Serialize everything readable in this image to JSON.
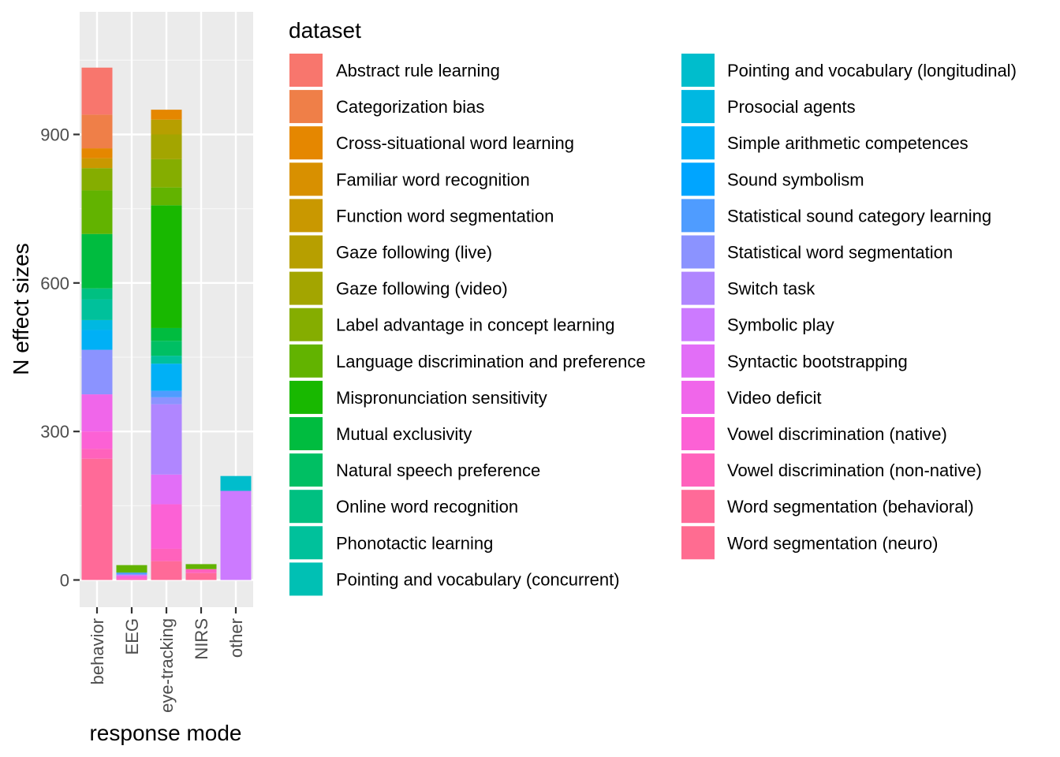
{
  "chart_data": {
    "type": "bar",
    "stacked": true,
    "xlabel": "response mode",
    "ylabel": "N effect sizes",
    "ylim": [
      -45,
      1100
    ],
    "y_ticks": [
      0,
      300,
      600,
      900
    ],
    "categories": [
      "behavior",
      "EEG",
      "eye-tracking",
      "NIRS",
      "other"
    ],
    "legend": {
      "title": "dataset",
      "placement": "right",
      "columns": 2
    },
    "grid": true,
    "series": [
      {
        "name": "Abstract rule learning",
        "color": "#F8766D",
        "values": [
          95,
          0,
          0,
          0,
          0
        ]
      },
      {
        "name": "Categorization bias",
        "color": "#EF7F48",
        "values": [
          68,
          0,
          0,
          0,
          0
        ]
      },
      {
        "name": "Cross-situational word learning",
        "color": "#E58700",
        "values": [
          20,
          0,
          20,
          0,
          0
        ]
      },
      {
        "name": "Familiar word recognition",
        "color": "#D89000",
        "values": [
          0,
          0,
          0,
          0,
          0
        ]
      },
      {
        "name": "Function word segmentation",
        "color": "#C99800",
        "values": [
          20,
          0,
          0,
          0,
          0
        ]
      },
      {
        "name": "Gaze following (live)",
        "color": "#B79F00",
        "values": [
          0,
          0,
          30,
          0,
          0
        ]
      },
      {
        "name": "Gaze following (video)",
        "color": "#A3A500",
        "values": [
          0,
          0,
          50,
          0,
          0
        ]
      },
      {
        "name": "Label advantage in concept learning",
        "color": "#85AD00",
        "values": [
          45,
          0,
          57,
          0,
          0
        ]
      },
      {
        "name": "Language discrimination and preference",
        "color": "#62B300",
        "values": [
          88,
          15,
          36,
          10,
          0
        ]
      },
      {
        "name": "Mispronunciation sensitivity",
        "color": "#18B800",
        "values": [
          0,
          0,
          248,
          0,
          0
        ]
      },
      {
        "name": "Mutual exclusivity",
        "color": "#00BC3F",
        "values": [
          110,
          0,
          26,
          0,
          0
        ]
      },
      {
        "name": "Natural speech preference",
        "color": "#00BF63",
        "values": [
          0,
          0,
          30,
          0,
          0
        ]
      },
      {
        "name": "Online word recognition",
        "color": "#00C081",
        "values": [
          22,
          0,
          0,
          0,
          0
        ]
      },
      {
        "name": "Phonotactic learning",
        "color": "#00C19B",
        "values": [
          42,
          0,
          16,
          0,
          0
        ]
      },
      {
        "name": "Pointing and vocabulary (concurrent)",
        "color": "#00C0B4",
        "values": [
          0,
          0,
          0,
          0,
          0
        ]
      },
      {
        "name": "Pointing and vocabulary (longitudinal)",
        "color": "#00BDCC",
        "values": [
          0,
          0,
          0,
          0,
          30
        ]
      },
      {
        "name": "Prosocial agents",
        "color": "#00B8E1",
        "values": [
          20,
          0,
          0,
          0,
          0
        ]
      },
      {
        "name": "Simple arithmetic competences",
        "color": "#00B0F6",
        "values": [
          40,
          0,
          55,
          0,
          0
        ]
      },
      {
        "name": "Sound symbolism",
        "color": "#00A5FF",
        "values": [
          0,
          0,
          0,
          0,
          0
        ]
      },
      {
        "name": "Statistical sound category learning",
        "color": "#4F9CFF",
        "values": [
          0,
          4,
          13,
          0,
          0
        ]
      },
      {
        "name": "Statistical word segmentation",
        "color": "#8B93FF",
        "values": [
          90,
          0,
          14,
          0,
          0
        ]
      },
      {
        "name": "Switch task",
        "color": "#B086FF",
        "values": [
          0,
          0,
          142,
          0,
          0
        ]
      },
      {
        "name": "Symbolic play",
        "color": "#CC7AFF",
        "values": [
          0,
          3,
          0,
          0,
          180
        ]
      },
      {
        "name": "Syntactic bootstrapping",
        "color": "#E26EF7",
        "values": [
          0,
          0,
          60,
          0,
          0
        ]
      },
      {
        "name": "Video deficit",
        "color": "#F066EA",
        "values": [
          75,
          0,
          0,
          0,
          0
        ]
      },
      {
        "name": "Vowel discrimination (native)",
        "color": "#FC61D5",
        "values": [
          35,
          5,
          90,
          0,
          0
        ]
      },
      {
        "name": "Vowel discrimination (non-native)",
        "color": "#FF62BC",
        "values": [
          20,
          3,
          25,
          8,
          0
        ]
      },
      {
        "name": "Word segmentation (behavioral)",
        "color": "#FF6A98",
        "values": [
          245,
          0,
          38,
          14,
          0
        ]
      },
      {
        "name": "Word segmentation (neuro)",
        "color": "#FF6C91",
        "values": [
          0,
          0,
          0,
          0,
          0
        ]
      }
    ]
  }
}
